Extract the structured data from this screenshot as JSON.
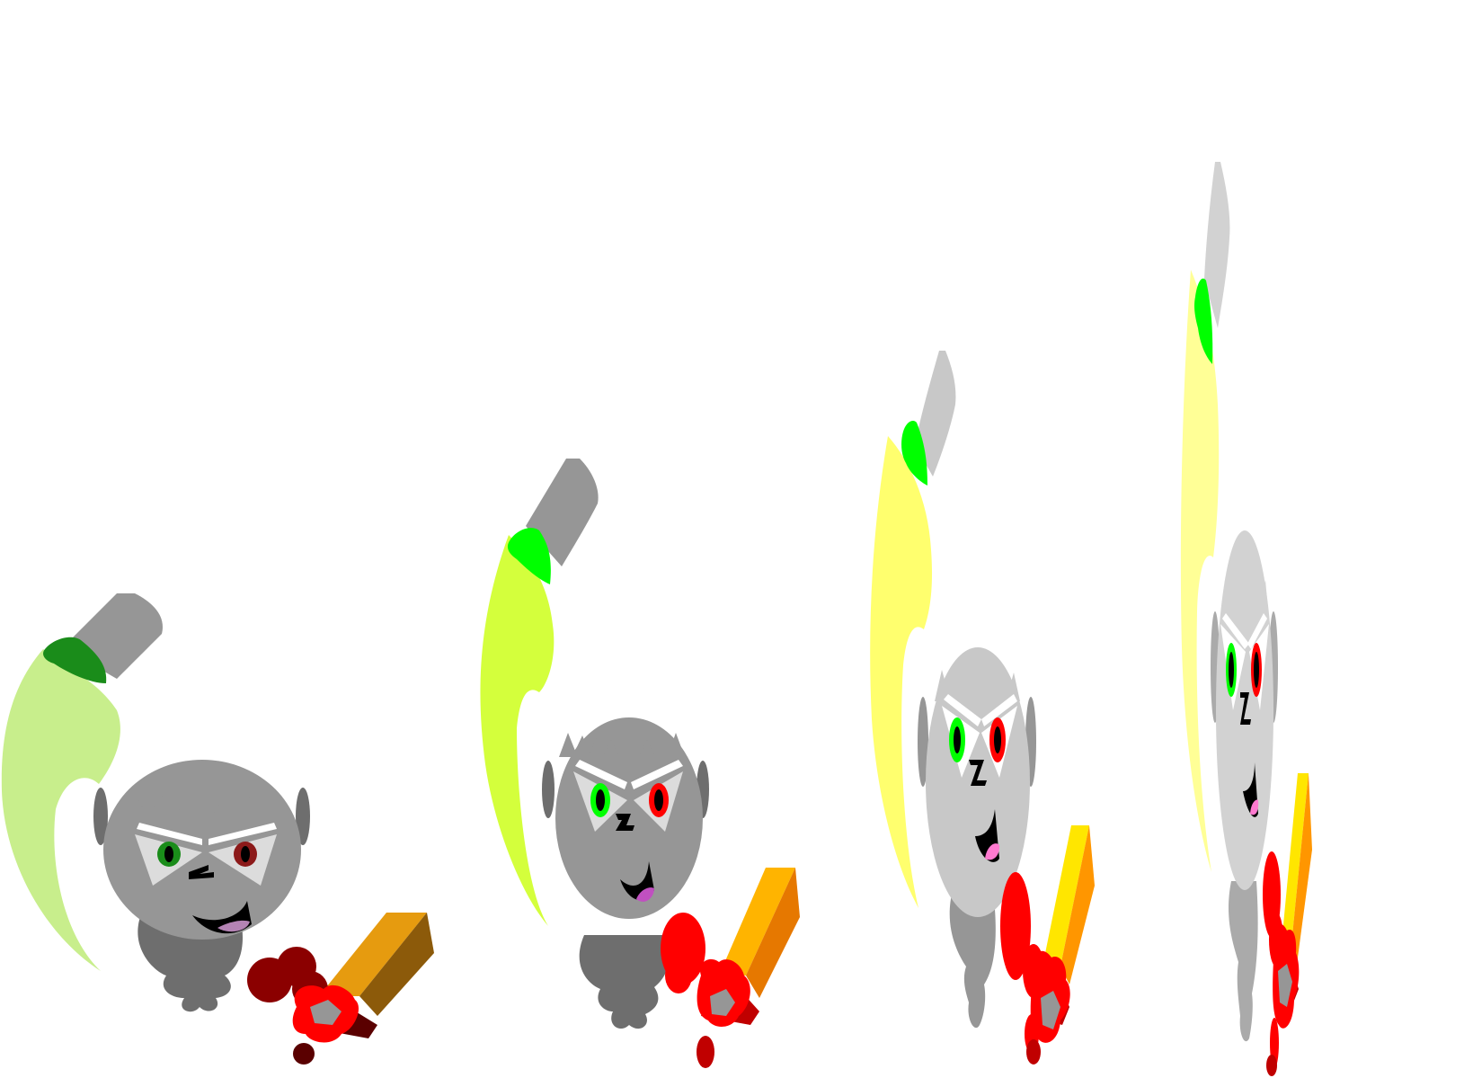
{
  "scene": {
    "background": "#ffffff",
    "frames": [
      {
        "id": "frame-1",
        "skin": "#969696",
        "skin_dark": "#6e6e6e",
        "hair": "#969696",
        "brow": "#ffffff",
        "eye_white": "#dcdcdc",
        "left_iris": "#1a8c1a",
        "right_iris": "#8c1a1a",
        "mouth": "#000000",
        "tongue": "#b483b4",
        "glove": "#8b0000",
        "glove_dark": "#5a0000",
        "fist": "#ff0000",
        "sword_blade": "#e69b0f",
        "sword_edge": "#8c5a0a",
        "axe_handle": "#969696",
        "axe_grip": "#1a8c1a",
        "axe_blade": "#c8ee8c"
      },
      {
        "id": "frame-2",
        "skin": "#969696",
        "skin_dark": "#6e6e6e",
        "hair": "#969696",
        "brow": "#ffffff",
        "eye_white": "#dcdcdc",
        "left_iris": "#00ff00",
        "right_iris": "#ff0000",
        "mouth": "#000000",
        "tongue": "#c050c0",
        "glove": "#ff0000",
        "glove_dark": "#c00000",
        "fist": "#ff0000",
        "sword_blade": "#ffb400",
        "sword_edge": "#e67800",
        "axe_handle": "#969696",
        "axe_grip": "#00ff00",
        "axe_blade": "#d4ff3c"
      },
      {
        "id": "frame-3",
        "skin": "#c8c8c8",
        "skin_dark": "#969696",
        "hair": "#c8c8c8",
        "brow": "#ffffff",
        "eye_white": "#ffffff",
        "left_iris": "#00ff00",
        "right_iris": "#ff0000",
        "mouth": "#000000",
        "tongue": "#ff7ad0",
        "glove": "#ff0000",
        "glove_dark": "#c00000",
        "fist": "#ff0000",
        "sword_blade": "#ffe600",
        "sword_edge": "#ff9600",
        "axe_handle": "#c8c8c8",
        "axe_grip": "#00ff00",
        "axe_blade": "#ffff6e"
      },
      {
        "id": "frame-4",
        "skin": "#d2d2d2",
        "skin_dark": "#aaaaaa",
        "hair": "#d2d2d2",
        "brow": "#ffffff",
        "eye_white": "#ffffff",
        "left_iris": "#00ff00",
        "right_iris": "#ff0000",
        "mouth": "#000000",
        "tongue": "#ff7ad0",
        "glove": "#ff0000",
        "glove_dark": "#c00000",
        "fist": "#ff0000",
        "sword_blade": "#ffe600",
        "sword_edge": "#ff9600",
        "axe_handle": "#d2d2d2",
        "axe_grip": "#00ff00",
        "axe_blade": "#ffff96"
      }
    ]
  }
}
